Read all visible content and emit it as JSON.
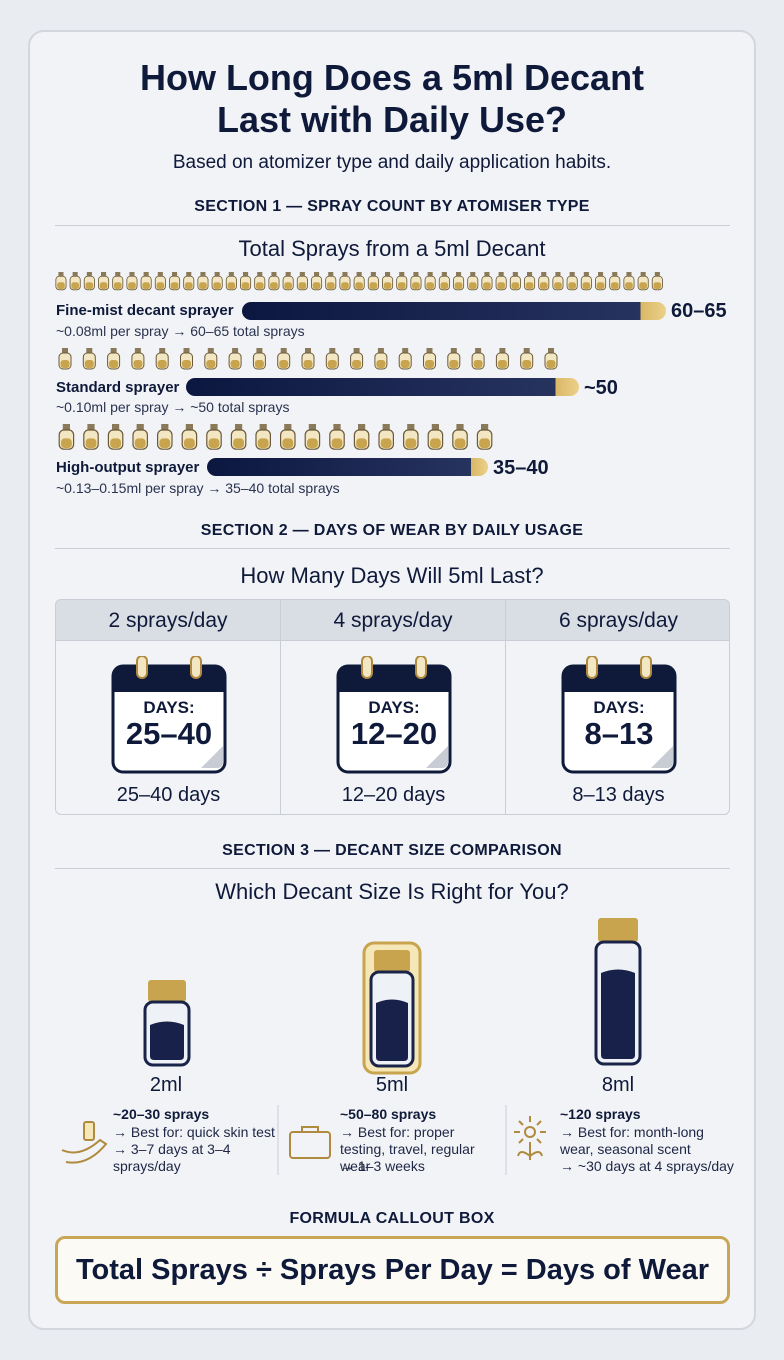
{
  "header": {
    "title": "How Long Does a 5ml Decant Last with Daily Use?",
    "subtitle": "Based on atomizer type and daily application habits."
  },
  "section1": {
    "heading": "SECTION 1 — SPRAY COUNT BY ATOMISER TYPE",
    "title": "Total Sprays from a 5ml Decant",
    "rows": [
      {
        "name": "Fine-mist decant sprayer",
        "detail": "~0.08ml per spray → 60–65 total sprays",
        "value_label": "60–65"
      },
      {
        "name": "Standard sprayer",
        "detail": "~0.10ml per spray → ~50 total sprays",
        "value_label": "~50"
      },
      {
        "name": "High-output sprayer",
        "detail": "~0.13–0.15ml per spray → 35–40 total sprays",
        "value_label": "35–40"
      }
    ]
  },
  "section2": {
    "heading": "SECTION 2 — DAYS OF WEAR BY DAILY USAGE",
    "title": "How Many Days Will 5ml Last?",
    "columns": [
      {
        "label": "2 sprays/day",
        "calendar_caption": "DAYS:",
        "calendar_value": "25–40",
        "days": "25–40 days"
      },
      {
        "label": "4 sprays/day",
        "calendar_caption": "DAYS:",
        "calendar_value": "12–20",
        "days": "12–20 days"
      },
      {
        "label": "6 sprays/day",
        "calendar_caption": "DAYS:",
        "calendar_value": "8–13",
        "days": "8–13 days"
      }
    ]
  },
  "section3": {
    "heading": "SECTION 3 — DECANT SIZE COMPARISON",
    "title": "Which Decant Size Is Right for You?",
    "sizes": [
      {
        "size": "2ml",
        "sprays": "~20–30 sprays",
        "lines": [
          "→ Best for: quick skin test",
          "→ 3–7 days at 3–4 sprays/day"
        ]
      },
      {
        "size": "5ml",
        "sprays": "~50–80 sprays",
        "lines": [
          "→ Best for: proper testing, travel, regular wear",
          "→ 1–3 weeks"
        ]
      },
      {
        "size": "8ml",
        "sprays": "~120 sprays",
        "lines": [
          "→ Best for: month-long wear, seasonal scent",
          "→ ~30 days at 4 sprays/day"
        ]
      }
    ]
  },
  "formula": {
    "heading": "FORMULA CALLOUT BOX",
    "text": "Total Sprays ÷ Sprays Per Day = Days of Wear"
  }
}
